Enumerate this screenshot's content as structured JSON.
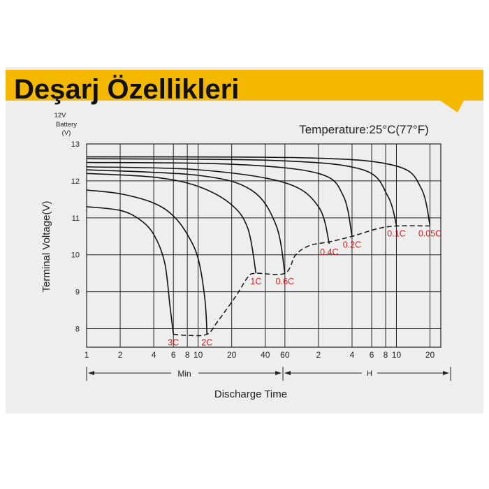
{
  "banner_title": "Deşarj Özellikleri",
  "colors": {
    "banner": "#f5b800",
    "panel": "#eeeeee",
    "curve": "#111111",
    "curve_label": "#cc1f1f"
  },
  "chart_data": {
    "type": "line",
    "temperature_label": "Temperature:25°C(77°F)",
    "battery_label": [
      "12V",
      "Battery",
      "(V)"
    ],
    "ylabel": "Terminal Voltage(V)",
    "xlabel": "Discharge Time",
    "x_unit_min": "Min",
    "x_unit_hour": "H",
    "ylim": [
      7.5,
      13
    ],
    "y_ticks": [
      8,
      9,
      10,
      11,
      12,
      13
    ],
    "x_scale": "log",
    "xlim_minutes": [
      1,
      1500
    ],
    "x_ticks": [
      {
        "label": "1",
        "minutes": 1
      },
      {
        "label": "2",
        "minutes": 2
      },
      {
        "label": "4",
        "minutes": 4
      },
      {
        "label": "6",
        "minutes": 6
      },
      {
        "label": "8",
        "minutes": 8
      },
      {
        "label": "10",
        "minutes": 10
      },
      {
        "label": "20",
        "minutes": 20
      },
      {
        "label": "40",
        "minutes": 40
      },
      {
        "label": "60",
        "minutes": 60
      },
      {
        "label": "2",
        "minutes": 120
      },
      {
        "label": "4",
        "minutes": 240
      },
      {
        "label": "6",
        "minutes": 360
      },
      {
        "label": "8",
        "minutes": 480
      },
      {
        "label": "10",
        "minutes": 600
      },
      {
        "label": "20",
        "minutes": 1200
      }
    ],
    "series": [
      {
        "name": "3C",
        "points": [
          [
            1,
            11.3
          ],
          [
            2,
            11.2
          ],
          [
            3,
            10.95
          ],
          [
            4,
            10.55
          ],
          [
            5,
            9.8
          ],
          [
            5.6,
            8.6
          ],
          [
            6,
            7.85
          ]
        ]
      },
      {
        "name": "2C",
        "points": [
          [
            1,
            11.75
          ],
          [
            2,
            11.65
          ],
          [
            4,
            11.4
          ],
          [
            6,
            11.05
          ],
          [
            8,
            10.55
          ],
          [
            10,
            9.9
          ],
          [
            11.5,
            8.8
          ],
          [
            12,
            7.85
          ]
        ]
      },
      {
        "name": "1C",
        "points": [
          [
            1,
            12.2
          ],
          [
            4,
            12.1
          ],
          [
            10,
            11.85
          ],
          [
            20,
            11.35
          ],
          [
            28,
            10.7
          ],
          [
            33,
            9.5
          ]
        ]
      },
      {
        "name": "0.6C",
        "points": [
          [
            1,
            12.3
          ],
          [
            10,
            12.15
          ],
          [
            30,
            11.75
          ],
          [
            50,
            10.8
          ],
          [
            60,
            9.5
          ]
        ]
      },
      {
        "name": "0.4C",
        "points": [
          [
            1,
            12.38
          ],
          [
            10,
            12.3
          ],
          [
            60,
            11.95
          ],
          [
            120,
            11.3
          ],
          [
            150,
            10.3
          ]
        ]
      },
      {
        "name": "0.2C",
        "points": [
          [
            1,
            12.5
          ],
          [
            20,
            12.45
          ],
          [
            120,
            12.2
          ],
          [
            200,
            11.6
          ],
          [
            240,
            10.5
          ]
        ]
      },
      {
        "name": "0.1C",
        "points": [
          [
            1,
            12.6
          ],
          [
            50,
            12.55
          ],
          [
            300,
            12.3
          ],
          [
            500,
            11.6
          ],
          [
            600,
            10.8
          ]
        ]
      },
      {
        "name": "0.05C",
        "points": [
          [
            1,
            12.65
          ],
          [
            100,
            12.62
          ],
          [
            600,
            12.4
          ],
          [
            1000,
            11.8
          ],
          [
            1200,
            10.8
          ]
        ]
      }
    ],
    "end_voltage_curve": {
      "style": "dashed",
      "points": [
        [
          6,
          7.85
        ],
        [
          8,
          7.82
        ],
        [
          12,
          7.85
        ],
        [
          15,
          8.2
        ],
        [
          22,
          8.9
        ],
        [
          28,
          9.4
        ],
        [
          33,
          9.5
        ],
        [
          60,
          9.5
        ],
        [
          75,
          10.0
        ],
        [
          100,
          10.25
        ],
        [
          150,
          10.35
        ],
        [
          240,
          10.5
        ],
        [
          400,
          10.7
        ],
        [
          600,
          10.78
        ],
        [
          1200,
          10.78
        ]
      ]
    }
  }
}
